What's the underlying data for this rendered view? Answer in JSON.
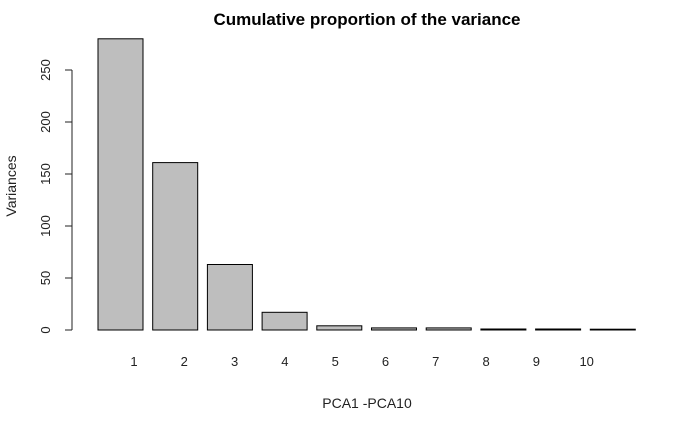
{
  "chart_data": {
    "type": "bar",
    "title": "Cumulative proportion of the variance",
    "xlabel": "PCA1 -PCA10",
    "ylabel": "Variances",
    "categories": [
      "1",
      "2",
      "3",
      "4",
      "5",
      "6",
      "7",
      "8",
      "9",
      "10"
    ],
    "values": [
      280,
      161,
      63,
      17,
      4,
      2,
      2,
      1,
      1,
      0.5
    ],
    "yticks": [
      0,
      50,
      100,
      150,
      200,
      250
    ],
    "ylim": [
      0,
      280
    ],
    "grid": false,
    "legend": false,
    "colors": {
      "bar_fill": "#bebebe",
      "bar_stroke": "#000000",
      "axis": "#222222"
    }
  }
}
